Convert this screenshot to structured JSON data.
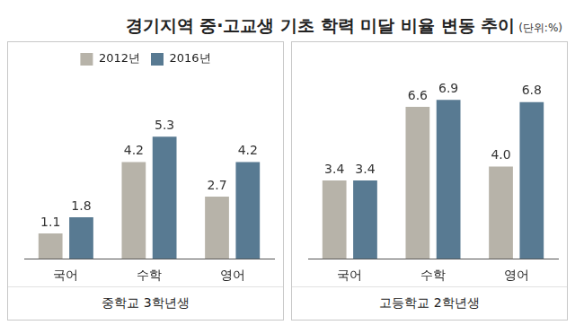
{
  "title": "경기지역 중·고교생 기초 학력 미달 비율 변동 추이",
  "subtitle": "(단위:%)",
  "chart_data": [
    {
      "type": "bar",
      "xlabel": "중학교 3학년생",
      "categories": [
        "국어",
        "수학",
        "영어"
      ],
      "series": [
        {
          "name": "2012년",
          "color": "#b7b3a9",
          "values": [
            1.1,
            4.2,
            2.7
          ]
        },
        {
          "name": "2016년",
          "color": "#587a92",
          "values": [
            1.8,
            5.3,
            4.2
          ]
        }
      ],
      "ylim": [
        0,
        8
      ],
      "yticks": [
        0,
        2,
        4,
        6,
        8
      ],
      "grid": false,
      "tick_labels": "x",
      "data_labels": true,
      "legend": "top"
    },
    {
      "type": "bar",
      "xlabel": "고등학교 2학년생",
      "categories": [
        "국어",
        "수학",
        "영어"
      ],
      "series": [
        {
          "name": "2012년",
          "color": "#b7b3a9",
          "values": [
            3.4,
            6.6,
            4.0
          ],
          "value_labels": [
            "3.4",
            "6.6",
            "4.0"
          ]
        },
        {
          "name": "2016년",
          "color": "#587a92",
          "values": [
            3.4,
            6.9,
            6.8
          ]
        }
      ],
      "ylim": [
        0,
        8
      ],
      "yticks": [
        0,
        2,
        4,
        6,
        8
      ],
      "grid": false,
      "tick_labels": "x",
      "data_labels": true
    }
  ]
}
